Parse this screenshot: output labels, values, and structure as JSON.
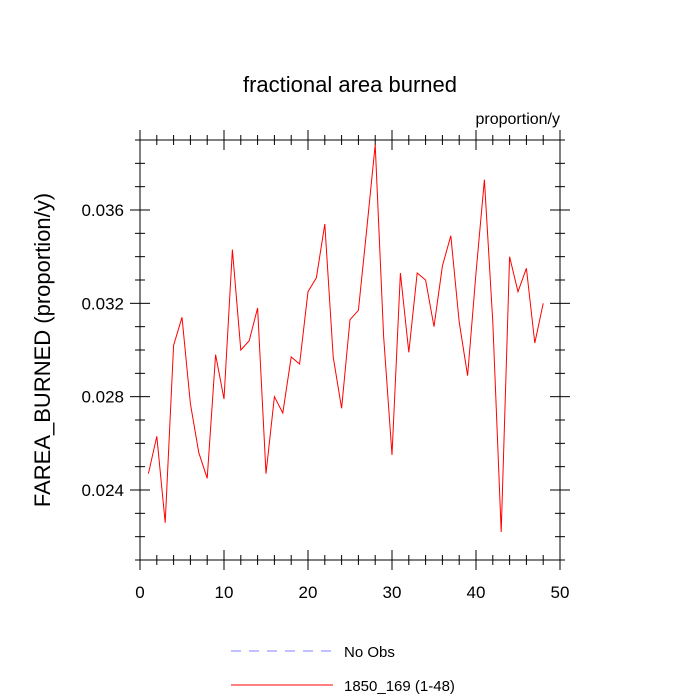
{
  "chart_data": {
    "type": "line",
    "title": "fractional area burned",
    "units_label": "proportion/y",
    "ylabel": "FAREA_BURNED  (proportion/y)",
    "xlabel": "",
    "xlim": [
      0,
      50
    ],
    "ylim": [
      0.021,
      0.039
    ],
    "x_ticks": [
      0,
      10,
      20,
      30,
      40,
      50
    ],
    "y_ticks": [
      0.024,
      0.028,
      0.032,
      0.036
    ],
    "x_tick_labels": [
      "0",
      "10",
      "20",
      "30",
      "40",
      "50"
    ],
    "y_tick_labels": [
      "0.024",
      "0.028",
      "0.032",
      "0.036"
    ],
    "grid": false,
    "legend_placement": "bottom-center",
    "series": [
      {
        "name": "1850_169 (1-48)",
        "color": "#ff0000",
        "style": "solid",
        "x": [
          1,
          2,
          3,
          4,
          5,
          6,
          7,
          8,
          9,
          10,
          11,
          12,
          13,
          14,
          15,
          16,
          17,
          18,
          19,
          20,
          21,
          22,
          23,
          24,
          25,
          26,
          27,
          28,
          29,
          30,
          31,
          32,
          33,
          34,
          35,
          36,
          37,
          38,
          39,
          40,
          41,
          42,
          43,
          44,
          45,
          46,
          47,
          48
        ],
        "values": [
          0.0247,
          0.0263,
          0.0226,
          0.0302,
          0.0314,
          0.0277,
          0.0256,
          0.0245,
          0.0298,
          0.0279,
          0.0343,
          0.03,
          0.0304,
          0.0318,
          0.0247,
          0.028,
          0.0273,
          0.0297,
          0.0294,
          0.0325,
          0.0331,
          0.0354,
          0.0297,
          0.0275,
          0.0313,
          0.0317,
          0.0352,
          0.0388,
          0.0306,
          0.0255,
          0.0333,
          0.0299,
          0.0333,
          0.033,
          0.031,
          0.0336,
          0.0349,
          0.0312,
          0.0289,
          0.0333,
          0.0373,
          0.0312,
          0.0222,
          0.034,
          0.0325,
          0.0335,
          0.0303,
          0.032
        ]
      }
    ],
    "legend": [
      {
        "label": "No Obs",
        "color": "#8080ff",
        "style": "dashed"
      },
      {
        "label": "1850_169 (1-48)",
        "color": "#ff0000",
        "style": "solid"
      }
    ]
  }
}
